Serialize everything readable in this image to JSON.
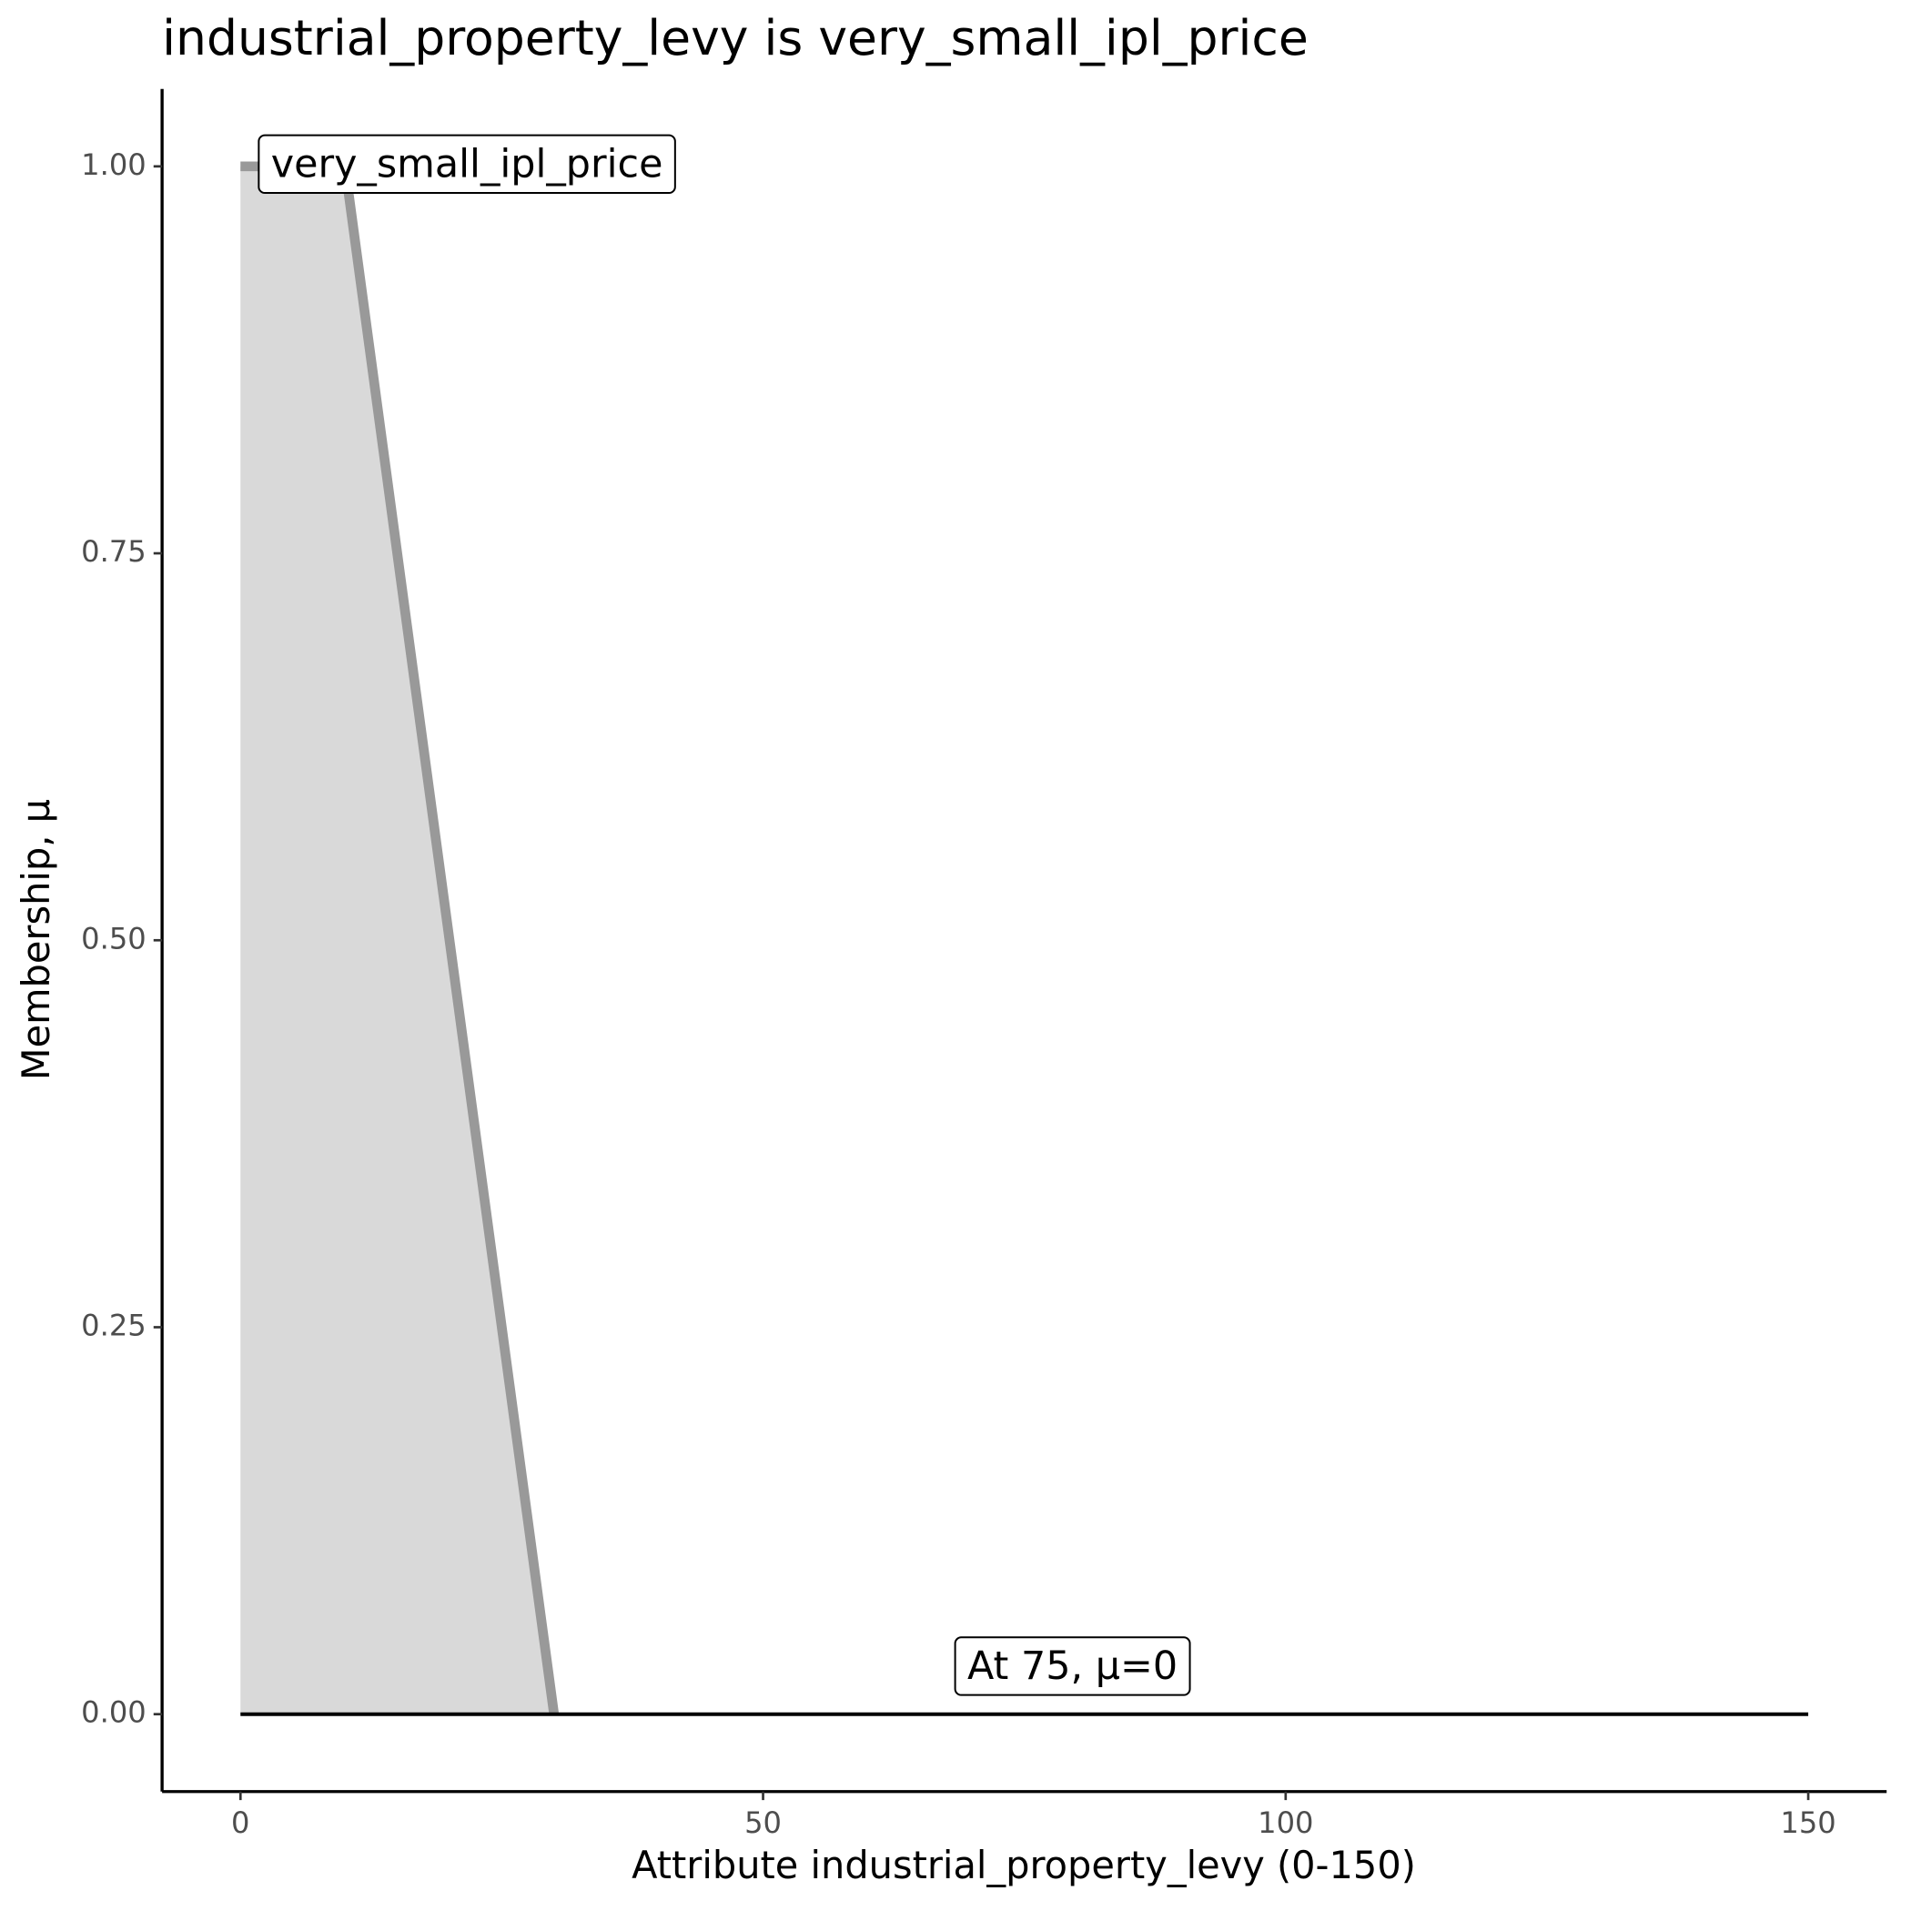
{
  "chart_data": {
    "type": "area",
    "title": "industrial_property_levy is very_small_ipl_price",
    "x_label": "Attribute industrial_property_levy (0-150)",
    "y_label": "Membership, μ",
    "x": [
      0,
      10,
      30
    ],
    "series": [
      {
        "name": "very_small_ipl_price",
        "color": "#999999",
        "fill": "#d9d9d9",
        "values": [
          1,
          1,
          0
        ]
      }
    ],
    "baseline": {
      "x": [
        0,
        150
      ],
      "values": [
        0,
        0
      ],
      "color": "#000000"
    },
    "annotation": "At 75, μ=0",
    "xlim": [
      -7.5,
      157.5
    ],
    "ylim": [
      -0.05,
      1.05
    ],
    "xticks": [
      0,
      50,
      100,
      150
    ],
    "yticks": [
      {
        "value": 0,
        "label": "0.00"
      },
      {
        "value": 0.25,
        "label": "0.25"
      },
      {
        "value": 0.5,
        "label": "0.50"
      },
      {
        "value": 0.75,
        "label": "0.75"
      },
      {
        "value": 1,
        "label": "1.00"
      }
    ]
  }
}
